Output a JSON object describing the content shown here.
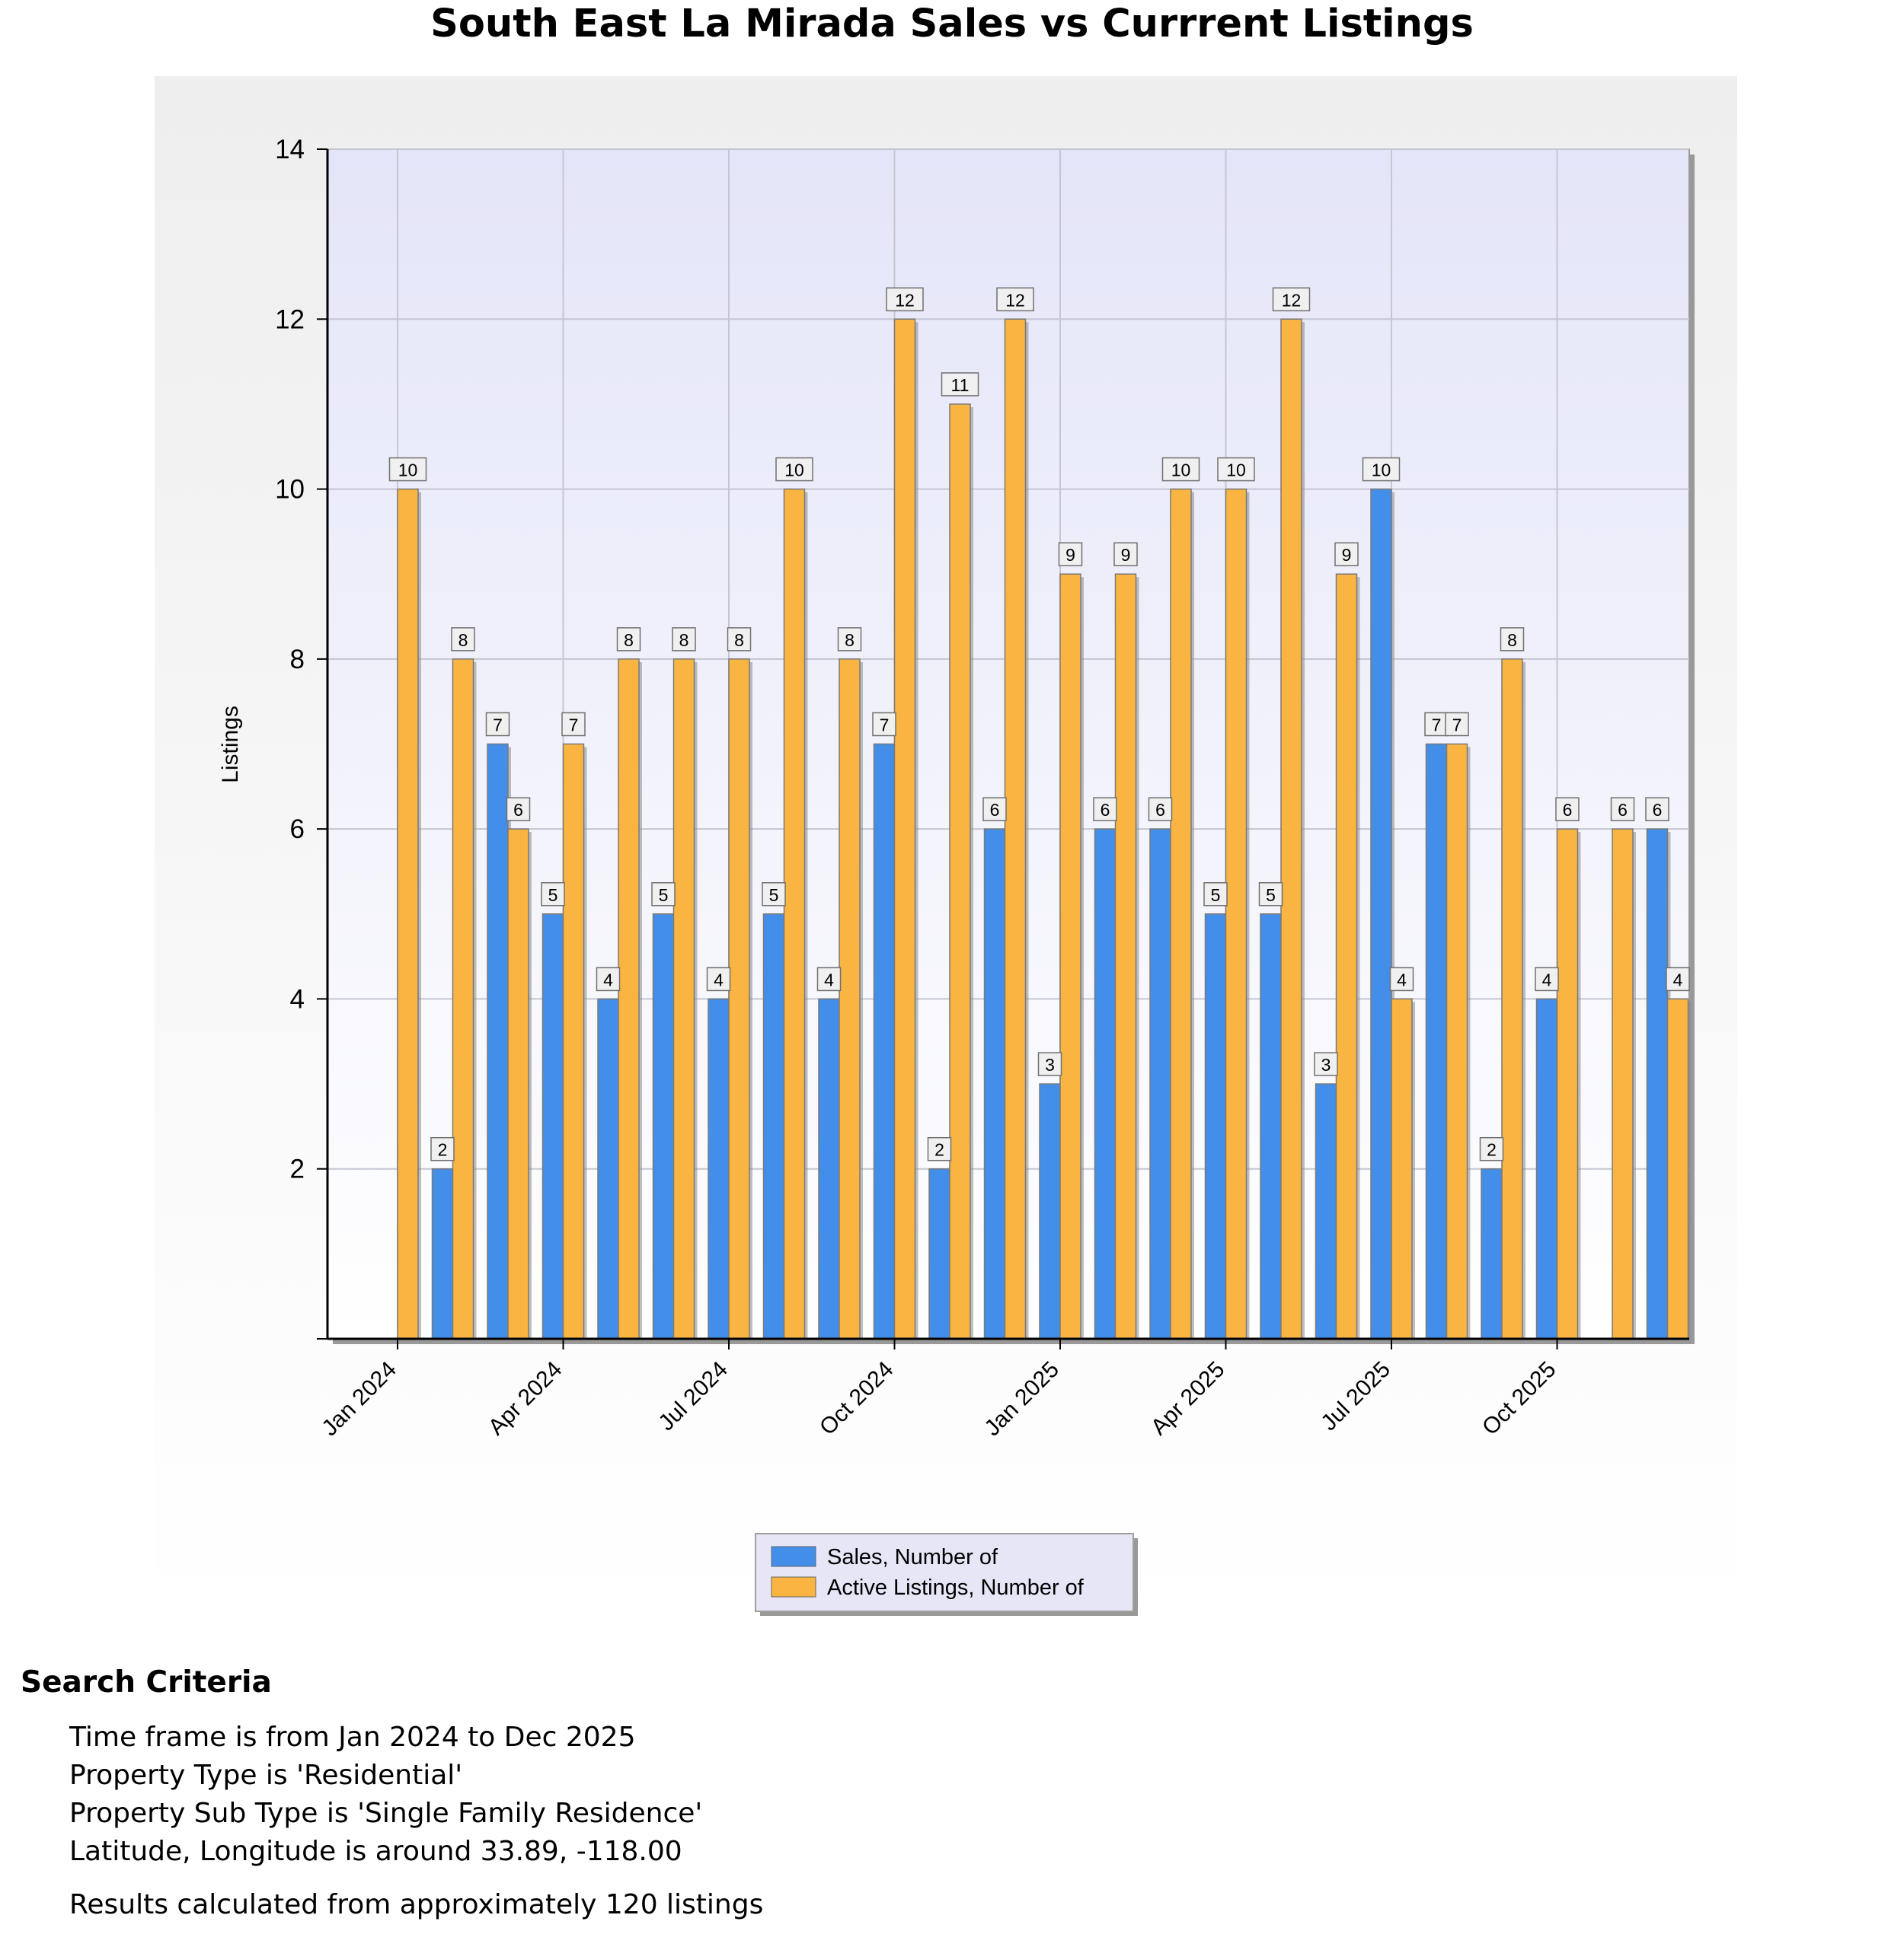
{
  "chart_data": {
    "type": "bar",
    "title": "South East La Mirada Sales vs Currrent Listings",
    "xlabel": "",
    "ylabel": "Listings",
    "ylim": [
      0,
      14
    ],
    "yticks": [
      2,
      4,
      6,
      8,
      10,
      12,
      14
    ],
    "grid": true,
    "legend_position": "bottom-center",
    "categories": [
      "Jan 2024",
      "Feb 2024",
      "Mar 2024",
      "Apr 2024",
      "May 2024",
      "Jun 2024",
      "Jul 2024",
      "Aug 2024",
      "Sep 2024",
      "Oct 2024",
      "Nov 2024",
      "Dec 2024",
      "Jan 2025",
      "Feb 2025",
      "Mar 2025",
      "Apr 2025",
      "May 2025",
      "Jun 2025",
      "Jul 2025",
      "Aug 2025",
      "Sep 2025",
      "Oct 2025",
      "Nov 2025",
      "Dec 2025"
    ],
    "tick_labels": [
      "Jan 2024",
      "Apr 2024",
      "Jul 2024",
      "Oct 2024",
      "Jan 2025",
      "Apr 2025",
      "Jul 2025",
      "Oct 2025"
    ],
    "series": [
      {
        "name": "Sales, Number of",
        "color": "#428ee8",
        "values": [
          null,
          2,
          7,
          5,
          4,
          5,
          4,
          5,
          4,
          7,
          2,
          6,
          3,
          6,
          6,
          5,
          5,
          3,
          10,
          7,
          2,
          4,
          null,
          6
        ]
      },
      {
        "name": "Active Listings, Number of",
        "color": "#f9b442",
        "values": [
          10,
          8,
          6,
          7,
          8,
          8,
          8,
          10,
          8,
          12,
          11,
          12,
          9,
          9,
          10,
          10,
          12,
          9,
          4,
          7,
          8,
          6,
          6,
          4
        ]
      }
    ]
  },
  "criteria": {
    "heading": "Search Criteria",
    "items": [
      "Time frame is from Jan 2024 to Dec 2025",
      "Property Type is 'Residential'",
      "Property Sub Type is 'Single Family Residence'",
      "Latitude, Longitude is around 33.89, -118.00"
    ],
    "results_note": "Results calculated from approximately 120 listings"
  }
}
